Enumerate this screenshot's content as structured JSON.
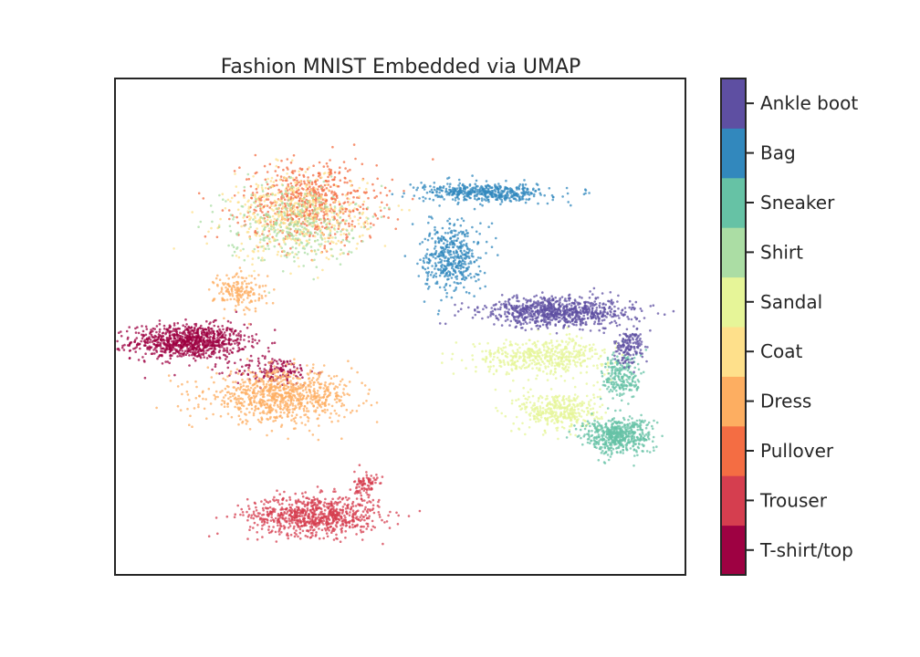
{
  "chart_data": {
    "type": "scatter",
    "title": "Fashion MNIST Embedded via UMAP",
    "xlabel": "",
    "ylabel": "",
    "axes_ticks": false,
    "grid": false,
    "legend": "colorbar-right",
    "xlim": [
      0,
      10
    ],
    "ylim": [
      0,
      10
    ],
    "series": [
      {
        "name": "T-shirt/top",
        "color": "#9e0142",
        "clusters": [
          {
            "cx": 1.3,
            "cy": 4.7,
            "rx": 1.0,
            "ry": 0.35,
            "n": 900
          },
          {
            "cx": 2.8,
            "cy": 4.1,
            "rx": 0.7,
            "ry": 0.3,
            "n": 160
          }
        ]
      },
      {
        "name": "Trouser",
        "color": "#d53e4f",
        "clusters": [
          {
            "cx": 3.5,
            "cy": 1.2,
            "rx": 1.15,
            "ry": 0.4,
            "n": 800
          },
          {
            "cx": 4.4,
            "cy": 1.8,
            "rx": 0.2,
            "ry": 0.3,
            "n": 90
          }
        ]
      },
      {
        "name": "Pullover",
        "color": "#f46d43",
        "clusters": [
          {
            "cx": 3.4,
            "cy": 7.5,
            "rx": 1.2,
            "ry": 0.8,
            "n": 650
          }
        ]
      },
      {
        "name": "Dress",
        "color": "#fdae61",
        "clusters": [
          {
            "cx": 2.9,
            "cy": 3.6,
            "rx": 1.3,
            "ry": 0.5,
            "n": 850
          },
          {
            "cx": 2.2,
            "cy": 5.7,
            "rx": 0.45,
            "ry": 0.4,
            "n": 170
          }
        ]
      },
      {
        "name": "Coat",
        "color": "#fee08b",
        "clusters": [
          {
            "cx": 3.2,
            "cy": 7.2,
            "rx": 1.2,
            "ry": 0.85,
            "n": 500
          }
        ]
      },
      {
        "name": "Sandal",
        "color": "#e6f598",
        "clusters": [
          {
            "cx": 7.5,
            "cy": 4.4,
            "rx": 1.2,
            "ry": 0.35,
            "n": 500
          },
          {
            "cx": 7.8,
            "cy": 3.3,
            "rx": 0.7,
            "ry": 0.4,
            "n": 380
          }
        ]
      },
      {
        "name": "Shirt",
        "color": "#abdda4",
        "clusters": [
          {
            "cx": 3.1,
            "cy": 7.1,
            "rx": 1.15,
            "ry": 0.8,
            "n": 320
          }
        ]
      },
      {
        "name": "Sneaker",
        "color": "#66c2a5",
        "clusters": [
          {
            "cx": 8.8,
            "cy": 2.8,
            "rx": 0.6,
            "ry": 0.35,
            "n": 560
          },
          {
            "cx": 8.9,
            "cy": 4.0,
            "rx": 0.35,
            "ry": 0.5,
            "n": 220
          }
        ]
      },
      {
        "name": "Bag",
        "color": "#3288bd",
        "clusters": [
          {
            "cx": 6.5,
            "cy": 7.7,
            "rx": 1.1,
            "ry": 0.18,
            "n": 480
          },
          {
            "cx": 5.9,
            "cy": 6.4,
            "rx": 0.5,
            "ry": 0.7,
            "n": 440
          }
        ]
      },
      {
        "name": "Ankle boot",
        "color": "#5e4fa2",
        "clusters": [
          {
            "cx": 7.8,
            "cy": 5.3,
            "rx": 1.3,
            "ry": 0.3,
            "n": 850
          },
          {
            "cx": 9.0,
            "cy": 4.6,
            "rx": 0.25,
            "ry": 0.35,
            "n": 150
          }
        ]
      }
    ]
  }
}
